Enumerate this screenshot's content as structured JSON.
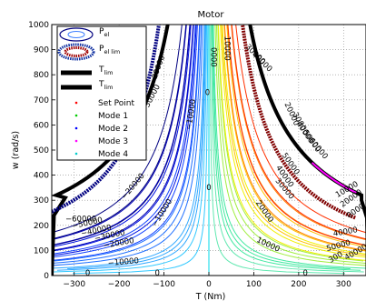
{
  "chart_data": {
    "type": "contour",
    "title": "Motor",
    "xlabel": "T (Nm)",
    "ylabel": "w (rad/s)",
    "xlim": [
      -350,
      350
    ],
    "ylim": [
      0,
      1000
    ],
    "xticks": [
      -300,
      -200,
      -100,
      0,
      100,
      200,
      300
    ],
    "yticks": [
      0,
      100,
      200,
      300,
      400,
      500,
      600,
      700,
      800,
      900,
      1000
    ],
    "grid": true,
    "legend_position": "top-left",
    "legend": [
      {
        "label": "P",
        "sub": "el",
        "marker": "ellipse-outline"
      },
      {
        "label": "P",
        "sub": "el lim",
        "marker": "ellipse-dotted-red"
      },
      {
        "label": "T",
        "sub": "lim",
        "marker": "thick-line"
      },
      {
        "label": "T",
        "sub": "lim",
        "marker": "thick-line"
      },
      {
        "label": "Set Point",
        "marker": "dot",
        "color": "#ff0000"
      },
      {
        "label": "Mode 1",
        "marker": "dot",
        "color": "#00cc00"
      },
      {
        "label": "Mode 2",
        "marker": "dot",
        "color": "#0000ff"
      },
      {
        "label": "Mode 3",
        "marker": "dot",
        "color": "#ff00ff"
      },
      {
        "label": "Mode 4",
        "marker": "dot",
        "color": "#00cccc"
      }
    ],
    "contour_levels": [
      -60000,
      -50000,
      -40000,
      -30000,
      -20000,
      -10000,
      0,
      10000,
      20000,
      30000,
      40000,
      50000,
      60000
    ],
    "contour_labels": [
      {
        "text": "-60000",
        "T": -180,
        "w": 905,
        "angle": -60
      },
      {
        "text": "-50000",
        "T": -250,
        "w": 535,
        "angle": -40
      },
      {
        "text": "-40000",
        "T": -160,
        "w": 555,
        "angle": -52
      },
      {
        "text": "-30000",
        "T": -125,
        "w": 700,
        "angle": -62
      },
      {
        "text": "-20000",
        "T": -110,
        "w": 815,
        "angle": -70
      },
      {
        "text": "-20000",
        "T": -165,
        "w": 350,
        "angle": -50
      },
      {
        "text": "-10000",
        "T": -35,
        "w": 640,
        "angle": -82
      },
      {
        "text": "-10000",
        "T": -100,
        "w": 245,
        "angle": -58
      },
      {
        "text": "-50000",
        "T": -270,
        "w": 200,
        "angle": -12
      },
      {
        "text": "-40000",
        "T": -250,
        "w": 170,
        "angle": -12
      },
      {
        "text": "-30000",
        "T": -220,
        "w": 150,
        "angle": -12
      },
      {
        "text": "-20000",
        "T": -200,
        "w": 120,
        "angle": -10
      },
      {
        "text": "-10000",
        "T": -190,
        "w": 45,
        "angle": -5
      },
      {
        "text": "-60000",
        "T": -285,
        "w": 215,
        "angle": 0
      },
      {
        "text": "0",
        "T": -3,
        "w": 720,
        "angle": 0
      },
      {
        "text": "0",
        "T": 0,
        "w": 340,
        "angle": 0
      },
      {
        "text": "0",
        "T": -270,
        "w": 0,
        "angle": 0
      },
      {
        "text": "0",
        "T": -115,
        "w": 0,
        "angle": 0
      },
      {
        "text": "0",
        "T": 215,
        "w": 0,
        "angle": 0
      },
      {
        "text": "10000",
        "T": 35,
        "w": 905,
        "angle": 90
      },
      {
        "text": "0000",
        "T": 5,
        "w": 870,
        "angle": 90
      },
      {
        "text": "10000",
        "T": 130,
        "w": 115,
        "angle": 25
      },
      {
        "text": "20000",
        "T": 120,
        "w": 250,
        "angle": 55
      },
      {
        "text": "30000",
        "T": 165,
        "w": 340,
        "angle": 50
      },
      {
        "text": "40000",
        "T": 165,
        "w": 390,
        "angle": 55
      },
      {
        "text": "50000",
        "T": 178,
        "w": 440,
        "angle": 55
      },
      {
        "text": "20000",
        "T": 180,
        "w": 640,
        "angle": 65
      },
      {
        "text": "30000",
        "T": 200,
        "w": 600,
        "angle": 60
      },
      {
        "text": "40000",
        "T": 210,
        "w": 565,
        "angle": 55
      },
      {
        "text": "50000",
        "T": 225,
        "w": 530,
        "angle": 55
      },
      {
        "text": "60000",
        "T": 240,
        "w": 500,
        "angle": 50
      },
      {
        "text": "30000",
        "T": 100,
        "w": 875,
        "angle": 45
      },
      {
        "text": "40000",
        "T": 115,
        "w": 845,
        "angle": 45
      },
      {
        "text": "10000",
        "T": 310,
        "w": 335,
        "angle": -30
      },
      {
        "text": "20000",
        "T": 320,
        "w": 300,
        "angle": -35
      },
      {
        "text": "0000",
        "T": 330,
        "w": 250,
        "angle": -35
      },
      {
        "text": "40000",
        "T": 305,
        "w": 165,
        "angle": -10
      },
      {
        "text": "50000",
        "T": 290,
        "w": 110,
        "angle": -15
      },
      {
        "text": "300",
        "T": 285,
        "w": 65,
        "angle": -30
      },
      {
        "text": "40000",
        "T": 330,
        "w": 85,
        "angle": -30
      }
    ]
  }
}
